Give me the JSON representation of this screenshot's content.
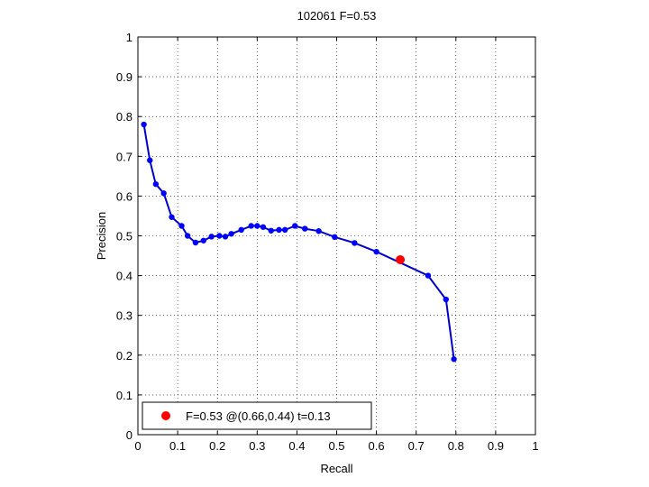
{
  "chart_data": {
    "type": "line",
    "title": "102061 F=0.53",
    "xlabel": "Recall",
    "ylabel": "Precision",
    "xlim": [
      0,
      1
    ],
    "ylim": [
      0,
      1
    ],
    "grid": true,
    "xticks": [
      "0",
      "0.1",
      "0.2",
      "0.3",
      "0.4",
      "0.5",
      "0.6",
      "0.7",
      "0.8",
      "0.9",
      "1"
    ],
    "yticks": [
      "0",
      "0.1",
      "0.2",
      "0.3",
      "0.4",
      "0.5",
      "0.6",
      "0.7",
      "0.8",
      "0.9",
      "1"
    ],
    "line_color": "#0000cc",
    "marker_color": "#0000ff",
    "highlight_color": "#ff0000",
    "series": [
      {
        "x": [
          0.015,
          0.03,
          0.045,
          0.065,
          0.085,
          0.11,
          0.125,
          0.145,
          0.165,
          0.185,
          0.205,
          0.22,
          0.235,
          0.26,
          0.285,
          0.3,
          0.315,
          0.335,
          0.355,
          0.37,
          0.395,
          0.42,
          0.455,
          0.495,
          0.545,
          0.6,
          0.73,
          0.775,
          0.795
        ],
        "y": [
          0.78,
          0.69,
          0.63,
          0.607,
          0.547,
          0.525,
          0.5,
          0.483,
          0.488,
          0.498,
          0.5,
          0.498,
          0.505,
          0.515,
          0.525,
          0.525,
          0.522,
          0.513,
          0.515,
          0.515,
          0.525,
          0.518,
          0.512,
          0.497,
          0.482,
          0.46,
          0.4,
          0.34,
          0.19
        ]
      }
    ],
    "highlight_point": {
      "x": 0.66,
      "y": 0.44
    },
    "legend": {
      "position": "bottom-left",
      "label": "F=0.53 @(0.66,0.44) t=0.13"
    }
  }
}
